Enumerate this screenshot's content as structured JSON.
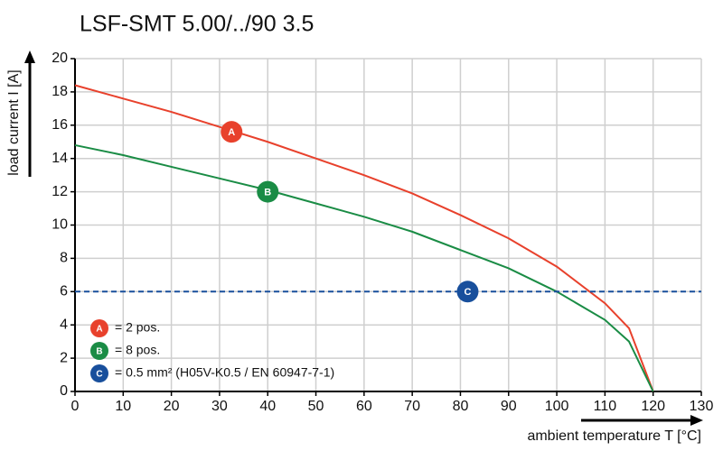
{
  "chart_data": {
    "type": "line",
    "title": "LSF-SMT 5.00/../90 3.5",
    "x_label": "ambient temperature T [°C]",
    "y_label": "load current I [A]",
    "xlim": [
      0,
      130
    ],
    "ylim": [
      0,
      20
    ],
    "xticks": [
      0,
      10,
      20,
      30,
      40,
      50,
      60,
      70,
      80,
      90,
      100,
      110,
      120,
      130
    ],
    "yticks": [
      0,
      2,
      4,
      6,
      8,
      10,
      12,
      14,
      16,
      18,
      20
    ],
    "grid": true,
    "series": [
      {
        "name": "A",
        "legend_text": "= 2 pos.",
        "color": "#e8412c",
        "dash": false,
        "x": [
          0,
          10,
          20,
          30,
          40,
          50,
          60,
          70,
          80,
          90,
          100,
          110,
          115,
          120
        ],
        "values": [
          18.4,
          17.6,
          16.8,
          15.9,
          15.0,
          14.0,
          13.0,
          11.9,
          10.6,
          9.2,
          7.5,
          5.3,
          3.8,
          0
        ],
        "marker": {
          "label": "A",
          "x": 32.5,
          "y": 15.6
        }
      },
      {
        "name": "B",
        "legend_text": "= 8 pos.",
        "color": "#1a8c45",
        "dash": false,
        "x": [
          0,
          10,
          20,
          30,
          40,
          50,
          60,
          70,
          80,
          90,
          100,
          110,
          115,
          120
        ],
        "values": [
          14.8,
          14.2,
          13.5,
          12.8,
          12.1,
          11.3,
          10.5,
          9.6,
          8.5,
          7.4,
          6.0,
          4.3,
          3.0,
          0
        ],
        "marker": {
          "label": "B",
          "x": 40,
          "y": 12
        }
      },
      {
        "name": "C",
        "legend_text": "= 0.5 mm² (H05V-K0.5 / EN 60947-7-1)",
        "color": "#184f9c",
        "dash": true,
        "x": [
          0,
          130
        ],
        "values": [
          6,
          6
        ],
        "marker": {
          "label": "C",
          "x": 81.5,
          "y": 6
        }
      }
    ]
  }
}
